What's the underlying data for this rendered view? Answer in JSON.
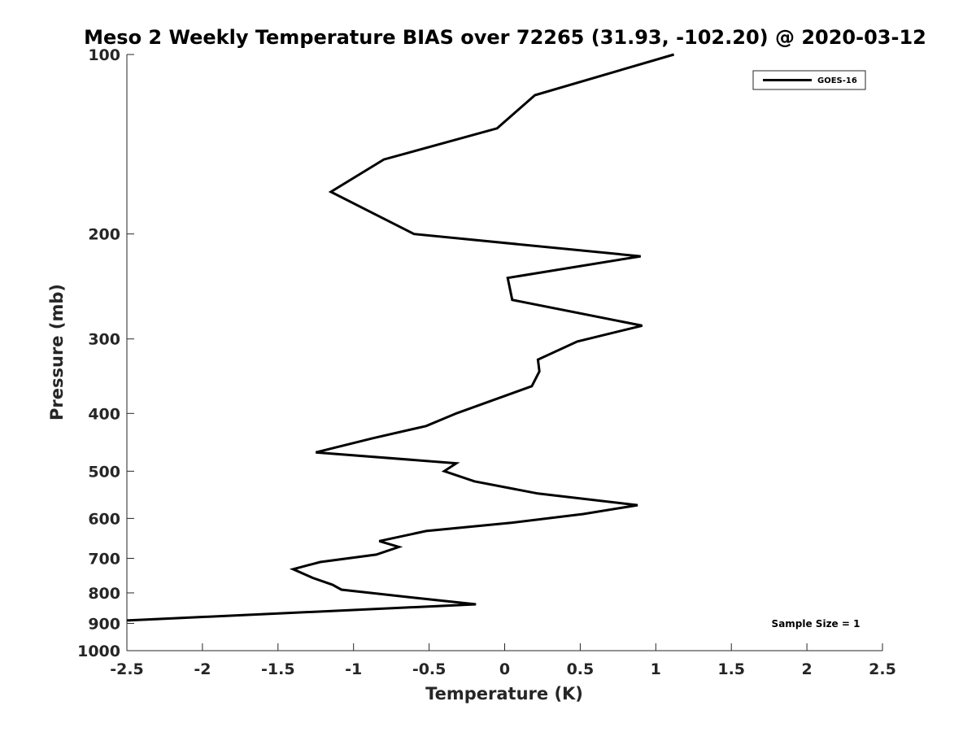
{
  "chart_data": {
    "type": "line",
    "title": "Meso 2 Weekly Temperature BIAS over 72265 (31.93, -102.20) @ 2020-03-12",
    "xlabel": "Temperature (K)",
    "ylabel": "Pressure (mb)",
    "xlim": [
      -2.5,
      2.5
    ],
    "ylim": [
      100,
      1000
    ],
    "yscale": "log",
    "yreversed": true,
    "xticks": [
      "-2.5",
      "-2",
      "-1.5",
      "-1",
      "-0.5",
      "0",
      "0.5",
      "1",
      "1.5",
      "2",
      "2.5"
    ],
    "yticks": [
      "100",
      "200",
      "300",
      "400",
      "500",
      "600",
      "700",
      "800",
      "900",
      "1000"
    ],
    "grid": false,
    "legend_position": "top-right",
    "annotation": "Sample Size = 1",
    "line_color": "#000000",
    "series": [
      {
        "name": "GOES-16",
        "x": [
          1.12,
          0.2,
          -0.05,
          -0.8,
          -1.15,
          -0.6,
          0.9,
          0.02,
          0.05,
          0.91,
          0.48,
          0.22,
          0.23,
          0.18,
          -0.32,
          -0.52,
          -0.87,
          -1.25,
          -0.32,
          -0.4,
          -0.2,
          0.22,
          0.88,
          0.52,
          0.05,
          -0.52,
          -0.83,
          -0.7,
          -0.85,
          -1.22,
          -1.4,
          -1.27,
          -1.14,
          -1.08,
          -0.6,
          -0.19,
          -2.5
        ],
        "y": [
          100,
          117,
          133,
          150,
          170,
          200,
          218,
          237,
          258,
          285,
          303,
          325,
          340,
          360,
          400,
          420,
          440,
          465,
          485,
          500,
          520,
          545,
          570,
          590,
          610,
          630,
          655,
          670,
          690,
          710,
          730,
          755,
          775,
          790,
          815,
          836,
          890
        ]
      }
    ]
  }
}
